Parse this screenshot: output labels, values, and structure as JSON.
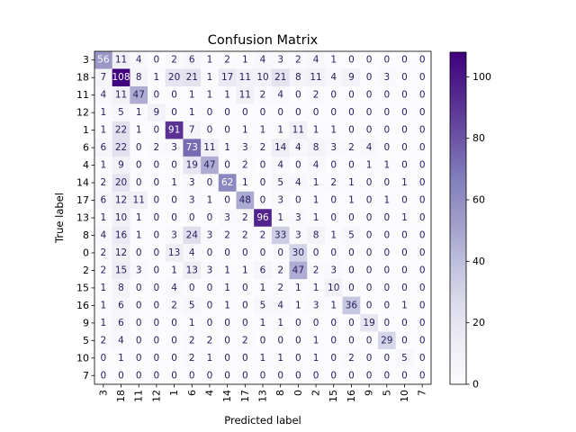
{
  "chart_data": {
    "type": "heatmap",
    "title": "Confusion Matrix",
    "xlabel": "Predicted label",
    "ylabel": "True label",
    "labels": [
      "3",
      "18",
      "11",
      "12",
      "1",
      "6",
      "4",
      "14",
      "17",
      "13",
      "8",
      "0",
      "2",
      "15",
      "16",
      "9",
      "5",
      "10",
      "7"
    ],
    "matrix": [
      [
        56,
        11,
        4,
        0,
        2,
        6,
        1,
        2,
        1,
        4,
        3,
        2,
        4,
        1,
        0,
        0,
        0,
        0,
        0
      ],
      [
        7,
        108,
        8,
        1,
        20,
        21,
        1,
        17,
        11,
        10,
        21,
        8,
        11,
        4,
        9,
        0,
        3,
        0,
        0
      ],
      [
        4,
        11,
        47,
        0,
        0,
        1,
        1,
        1,
        11,
        2,
        4,
        0,
        2,
        0,
        0,
        0,
        0,
        0,
        0
      ],
      [
        1,
        5,
        1,
        9,
        0,
        1,
        0,
        0,
        0,
        0,
        0,
        0,
        0,
        0,
        0,
        0,
        0,
        0,
        0
      ],
      [
        1,
        22,
        1,
        0,
        91,
        7,
        0,
        0,
        1,
        1,
        1,
        11,
        1,
        1,
        0,
        0,
        0,
        0,
        0
      ],
      [
        6,
        22,
        0,
        2,
        3,
        73,
        11,
        1,
        3,
        2,
        14,
        4,
        8,
        3,
        2,
        4,
        0,
        0,
        0
      ],
      [
        1,
        9,
        0,
        0,
        0,
        19,
        47,
        0,
        2,
        0,
        4,
        0,
        4,
        0,
        0,
        1,
        1,
        0,
        0
      ],
      [
        2,
        20,
        0,
        0,
        1,
        3,
        0,
        62,
        1,
        0,
        5,
        4,
        1,
        2,
        1,
        0,
        0,
        1,
        0
      ],
      [
        6,
        12,
        11,
        0,
        0,
        3,
        1,
        0,
        48,
        0,
        3,
        0,
        1,
        0,
        1,
        0,
        1,
        0,
        0
      ],
      [
        1,
        10,
        1,
        0,
        0,
        0,
        0,
        3,
        2,
        96,
        1,
        3,
        1,
        0,
        0,
        0,
        0,
        1,
        0
      ],
      [
        4,
        16,
        1,
        0,
        3,
        24,
        3,
        2,
        2,
        2,
        33,
        3,
        8,
        1,
        5,
        0,
        0,
        0,
        0
      ],
      [
        2,
        12,
        0,
        0,
        13,
        4,
        0,
        0,
        0,
        0,
        0,
        30,
        0,
        0,
        0,
        0,
        0,
        0,
        0
      ],
      [
        2,
        15,
        3,
        0,
        1,
        13,
        3,
        1,
        1,
        6,
        2,
        47,
        2,
        3,
        0,
        0,
        0,
        0,
        0
      ],
      [
        1,
        8,
        0,
        0,
        4,
        0,
        0,
        1,
        0,
        1,
        2,
        1,
        1,
        10,
        0,
        0,
        0,
        0,
        0
      ],
      [
        1,
        6,
        0,
        0,
        2,
        5,
        0,
        1,
        0,
        5,
        4,
        1,
        3,
        1,
        36,
        0,
        0,
        1,
        0
      ],
      [
        1,
        6,
        0,
        0,
        0,
        1,
        0,
        0,
        0,
        1,
        1,
        0,
        0,
        0,
        0,
        19,
        0,
        0,
        0
      ],
      [
        2,
        4,
        0,
        0,
        0,
        2,
        2,
        0,
        2,
        0,
        0,
        0,
        1,
        0,
        0,
        0,
        29,
        0,
        0
      ],
      [
        0,
        1,
        0,
        0,
        0,
        2,
        1,
        0,
        0,
        1,
        1,
        0,
        1,
        0,
        2,
        0,
        0,
        5,
        0
      ],
      [
        0,
        0,
        0,
        0,
        0,
        0,
        0,
        0,
        0,
        0,
        0,
        0,
        0,
        0,
        0,
        0,
        0,
        0,
        0
      ]
    ],
    "colorbar": {
      "colormap": "Purples",
      "vmin": 0,
      "vmax": 108,
      "ticks": [
        "0",
        "20",
        "40",
        "60",
        "80",
        "100"
      ]
    },
    "text_threshold": 54
  }
}
